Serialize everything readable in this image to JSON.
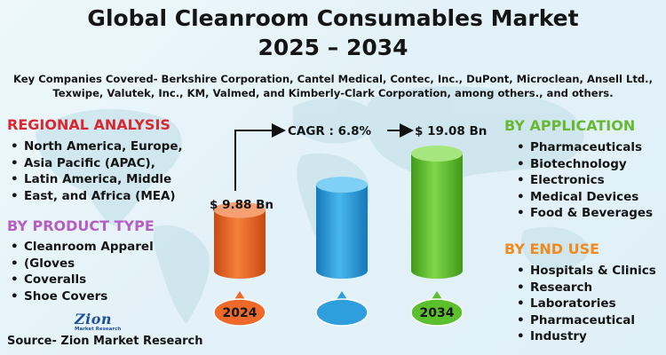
{
  "title": {
    "line1": "Global Cleanroom Consumables Market",
    "line2": "2025 – 2034"
  },
  "subtitle": {
    "line1": "Key Companies Covered- Berkshire Corporation, Cantel Medical, Contec, Inc., DuPont, Microclean, Ansell Ltd.,",
    "line2": "Texwipe, Valutek, Inc., KM, Valmed, and Kimberly-Clark Corporation, among others., and others."
  },
  "regional": {
    "heading": "REGIONAL ANALYSIS",
    "items": [
      "North America, Europe,",
      "Asia Pacific (APAC),",
      "Latin America, Middle",
      "East, and Africa (MEA)"
    ]
  },
  "product": {
    "heading": "BY PRODUCT TYPE",
    "items": [
      "Cleanroom Apparel",
      "(Gloves",
      "Coveralls",
      "Shoe Covers"
    ]
  },
  "application": {
    "heading": "BY APPLICATION",
    "items": [
      "Pharmaceuticals",
      "Biotechnology",
      "Electronics",
      "Medical Devices",
      "Food & Beverages"
    ]
  },
  "end_use": {
    "heading": "BY END USE",
    "items": [
      "Hospitals & Clinics",
      "Research",
      "Laboratories",
      "Pharmaceutical",
      "Industry"
    ]
  },
  "logo": {
    "main": "Zion",
    "sub": "Market Research"
  },
  "source": "Source- Zion Market Research",
  "colors": {
    "bar_2024": "#ef6a2a",
    "bar_mid": "#2e9fdc",
    "bar_2034": "#5cbf2e",
    "red_heading": "#d9282f",
    "violet_heading": "#b55ec3",
    "green_heading": "#67b933",
    "orange_heading": "#ef8a1d"
  },
  "chart_data": {
    "type": "bar",
    "categories": [
      "2024",
      "",
      "2034"
    ],
    "values": [
      9.88,
      14.0,
      19.08
    ],
    "value_labels": [
      "$ 9.88 Bn",
      "",
      "$ 19.08 Bn"
    ],
    "cagr_label": "CAGR : 6.8%",
    "unit": "Bn"
  }
}
